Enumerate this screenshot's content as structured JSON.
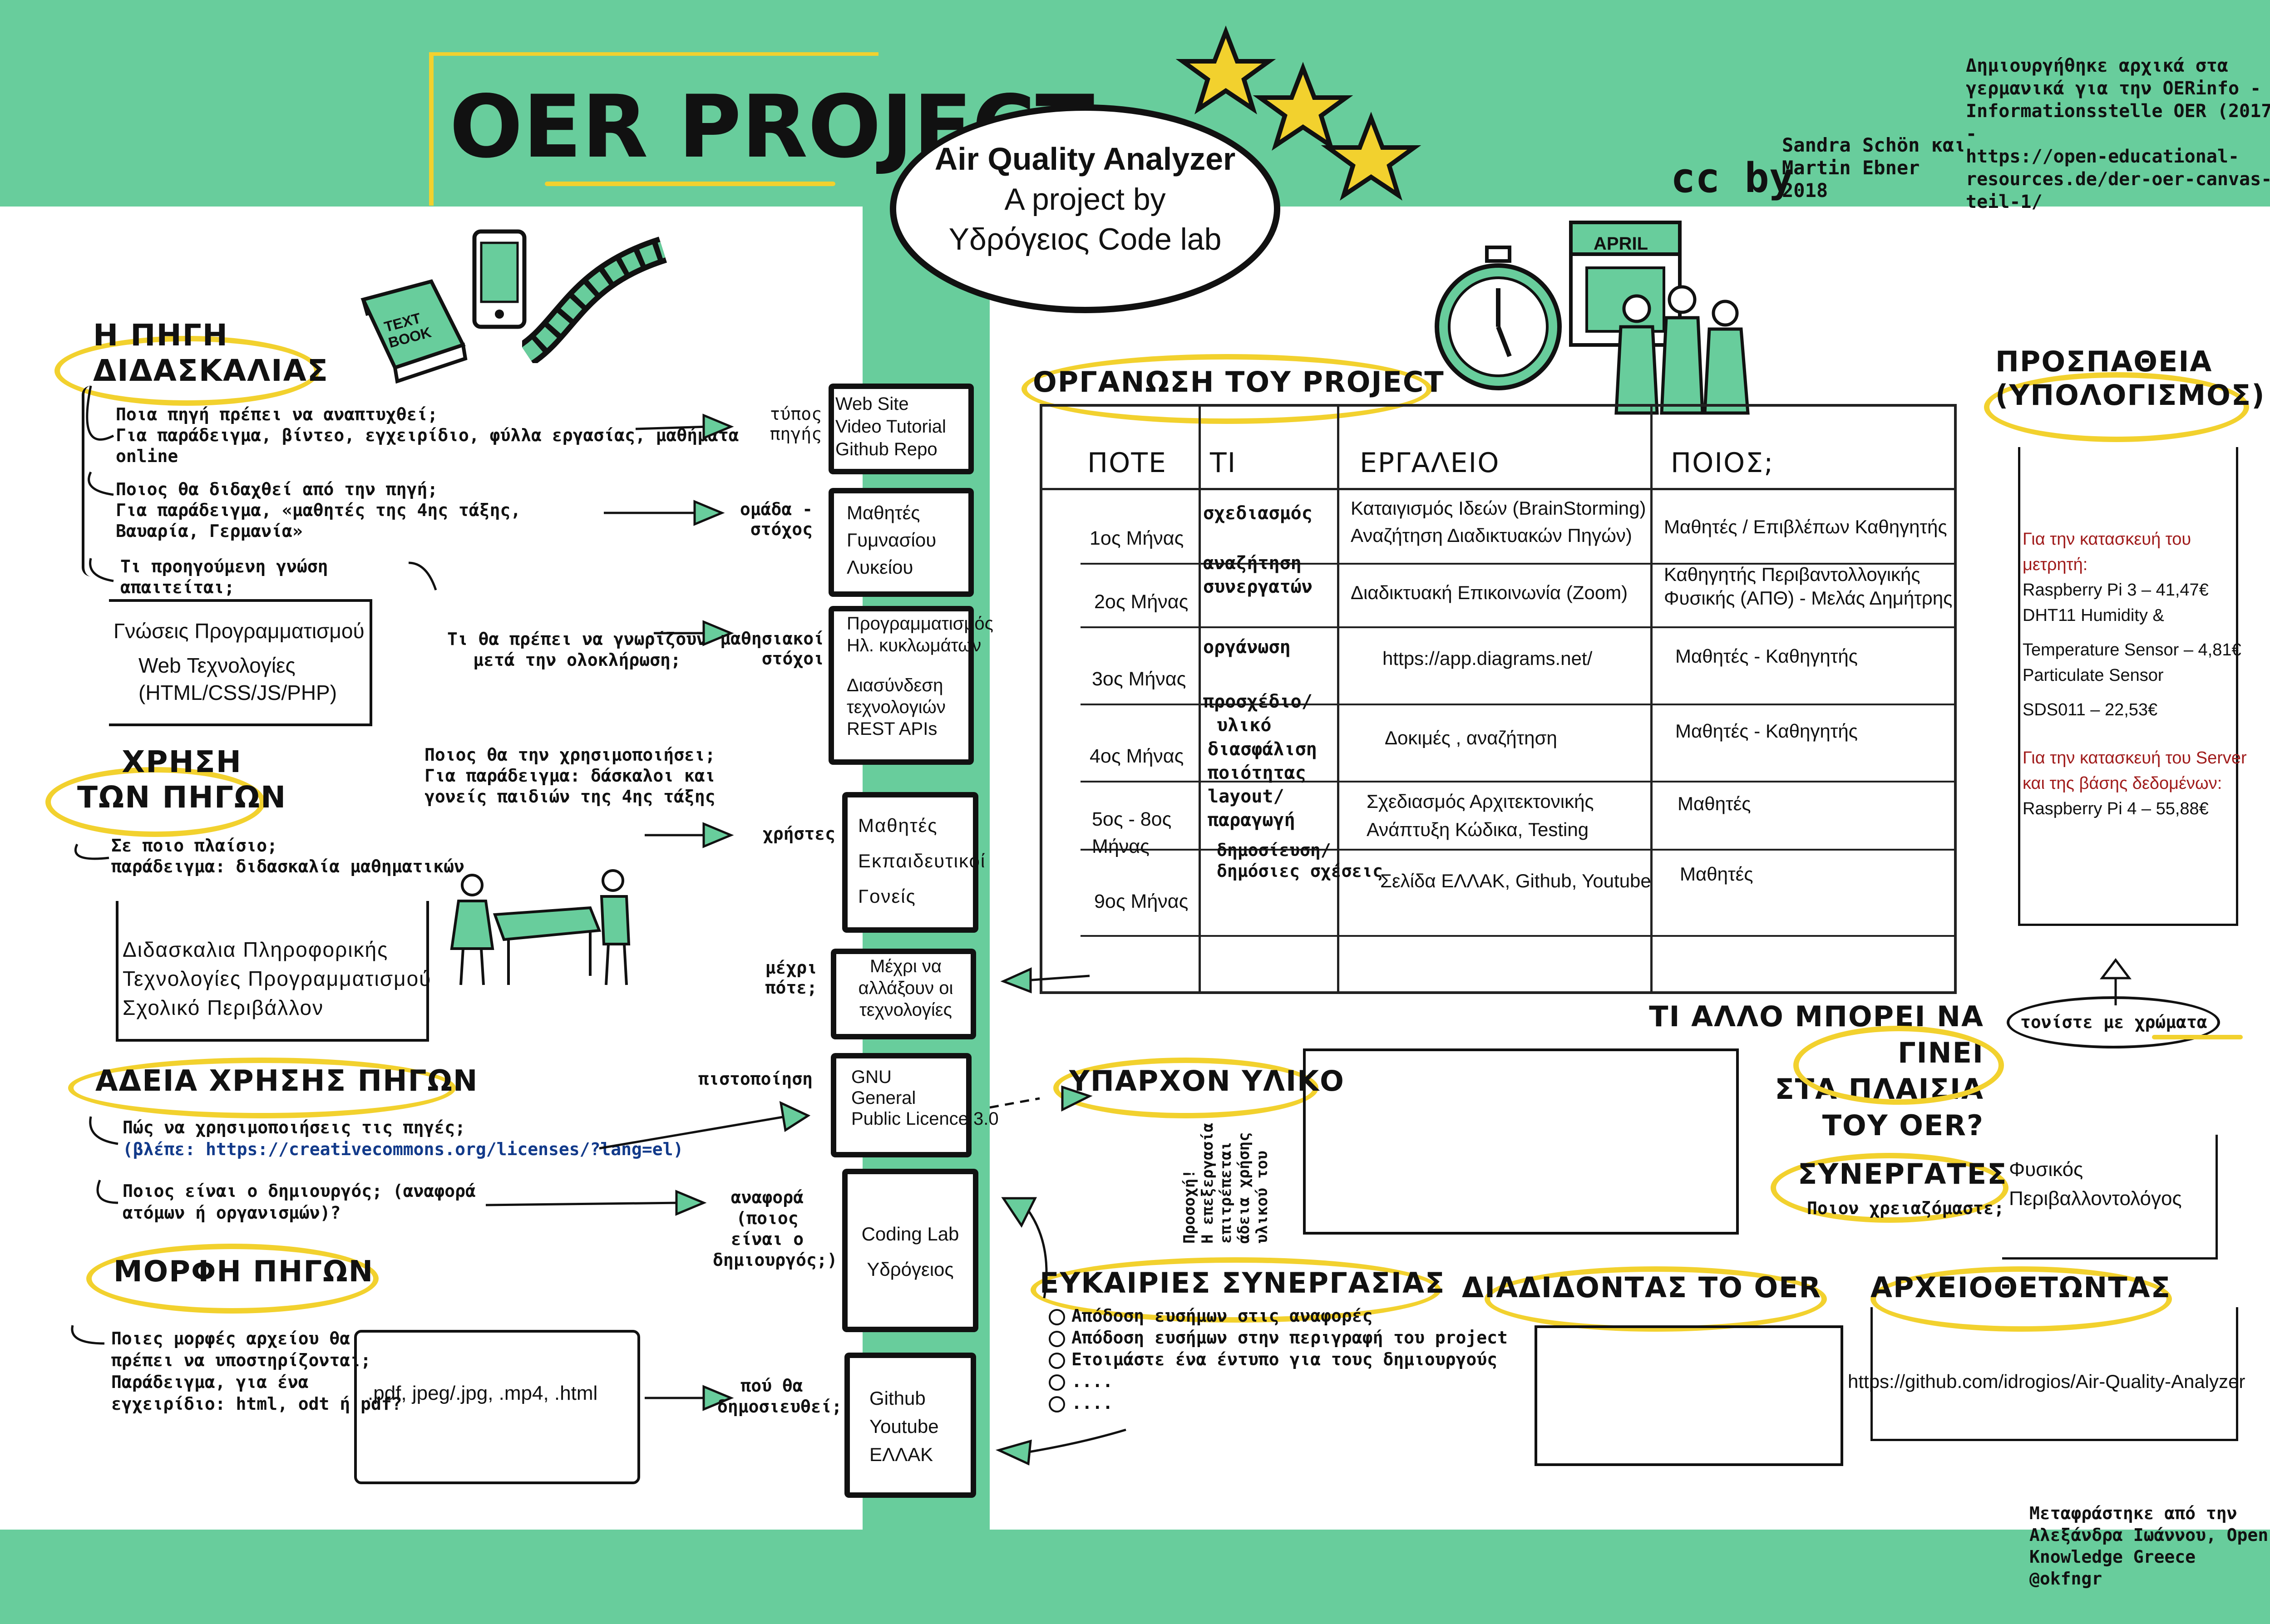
{
  "header": {
    "title": "OER PROJECT",
    "project_name": "Air Quality Analyzer",
    "project_by_line1": "A project by",
    "project_by_line2": "Υδρόγειος Code lab",
    "cc_logo": "cc by",
    "authors": [
      "Sandra Schön και",
      "Martin Ebner",
      "2018"
    ],
    "attribution": [
      "Δημιουργήθηκε αρχικά στα",
      "γερμανικά για την OERinfo -",
      "Informationsstelle OER (2017) -",
      "https://open-educational-",
      "resources.de/der-oer-canvas-teil-1/"
    ],
    "stars_icon": "stars-icon",
    "textbook_label": [
      "TEXT",
      "BOOK"
    ]
  },
  "left": {
    "source": {
      "heading": [
        "Η ΠΗΓΗ",
        "ΔΙΔΑΣΚΑΛΙΑΣ"
      ],
      "q1": [
        "Ποια πηγή πρέπει να αναπτυχθεί;",
        "Για παράδειγμα, βίντεο, εγχειρίδιο, φύλλα εργασίας, μαθήματα",
        "online"
      ],
      "q2": [
        "Ποιος θα διδαχθεί από την πηγή;",
        "Για παράδειγμα, «μαθητές της 4ης τάξης,",
        "Βαυαρία, Γερμανία»"
      ],
      "q3": [
        "Τι προηγούμενη γνώση",
        "απαιτείται;"
      ],
      "prior_knowledge": [
        "Γνώσεις Προγραμματισμού",
        "Web Τεχνολογίες",
        "(HTML/CSS/JS/PHP)"
      ],
      "q4": [
        "Τι θα πρέπει να γνωρίζουν",
        "μετά την ολοκλήρωση;"
      ]
    },
    "use": {
      "heading": [
        "ΧΡΗΣΗ",
        "ΤΩΝ ΠΗΓΩΝ"
      ],
      "q_users": [
        "Ποιος θα την χρησιμοποιήσει;",
        "Για παράδειγμα: δάσκαλοι και",
        "γονείς παιδιών της 4ης τάξης"
      ],
      "q_context": [
        "Σε ποιο πλαίσιο;",
        "παράδειγμα: διδασκαλία μαθηματικών"
      ],
      "context_box": [
        "Διδασκαλια Πληροφορικής",
        "Τεχνολογίες Προγραμματισμού",
        "Σχολικό Περιβάλλον"
      ]
    },
    "license": {
      "heading": "ΑΔΕΙΑ ΧΡΗΣΗΣ ΠΗΓΩΝ",
      "q1": [
        "Πώς να χρησιμοποιήσεις τις πηγές;",
        "(βλέπε: https://creativecommons.org/licenses/?lang=el)"
      ],
      "q2": [
        "Ποιος είναι ο δημιουργός; (αναφορά",
        "ατόμων ή οργανισμών)?"
      ]
    },
    "format": {
      "heading": "ΜΟΡΦΗ ΠΗΓΩΝ",
      "q1": [
        "Ποιες μορφές αρχείου θα",
        "πρέπει να υποστηρίζονται;",
        "Παράδειγμα, για ένα",
        "εγχειρίδιο: html, odt ή pdf?"
      ],
      "formats_box": ".pdf, jpeg/.jpg, .mp4, .html"
    }
  },
  "middle": {
    "items": [
      {
        "label": [
          "τύπος",
          "πηγής"
        ],
        "box": [
          "Web Site",
          "Video Tutorial",
          "Github Repo"
        ]
      },
      {
        "label": [
          "ομάδα -",
          "στόχος"
        ],
        "box": [
          "Μαθητές",
          "Γυμνασίου",
          "Λυκείου"
        ]
      },
      {
        "label": [
          "μαθησιακοί",
          "στόχοι"
        ],
        "box": [
          "Προγραμματισμός",
          "Ηλ. κυκλωμάτων",
          "Διασύνδεση",
          "τεχνολογιών",
          "REST APIs"
        ]
      },
      {
        "label": [
          "χρήστες"
        ],
        "box": [
          "Μαθητές",
          "Εκπαιδευτικοί",
          "Γονείς"
        ]
      },
      {
        "label": [
          "μέχρι",
          "πότε;"
        ],
        "box": [
          "Μέχρι να",
          "αλλάξουν οι",
          "τεχνολογίες"
        ]
      },
      {
        "label": [
          "πιστοποίηση"
        ],
        "box": [
          "GNU",
          "General",
          "Public Licence 3.0"
        ]
      },
      {
        "label": [
          "αναφορά",
          "(ποιος",
          "είναι ο",
          "δημιουργός;)"
        ],
        "box": [
          "Coding Lab",
          "Υδρόγειος"
        ]
      },
      {
        "label": [
          "πού θα",
          "δημοσιευθεί;"
        ],
        "box": [
          "Github",
          "Youtube",
          "ΕΛΛΑΚ"
        ]
      }
    ]
  },
  "right": {
    "organization": {
      "heading": "ΟΡΓΑΝΩΣΗ ΤΟΥ PROJECT",
      "calendar_label": "APRIL",
      "columns": [
        "ΠΟΤΕ",
        "ΤΙ",
        "ΕΡΓΑΛΕΙΟ",
        "ΠΟΙΟΣ;"
      ],
      "rows": [
        {
          "when": "1ος Μήνας",
          "what": "σχεδιασμός",
          "tool": [
            "Καταιγισμός Ιδεών (BrainStorming)",
            "Αναζήτηση Διαδικτυακών Πηγών)"
          ],
          "who": [
            "Μαθητές / Επιβλέπων Καθηγητής"
          ]
        },
        {
          "when": "2ος Μήνας",
          "what": [
            "αναζήτηση",
            "συνεργατών"
          ],
          "tool": [
            "Διαδικτυακή Επικοινωνία (Zoom)"
          ],
          "who": [
            "Καθηγητής Περιβαντολλογικής",
            "Φυσικής (ΑΠΘ) - Μελάς Δημήτρης"
          ]
        },
        {
          "when": "3ος Μήνας",
          "what": "οργάνωση",
          "tool": [
            "https://app.diagrams.net/"
          ],
          "who": [
            "Μαθητές - Καθηγητής"
          ]
        },
        {
          "when": "4ος Μήνας",
          "what": [
            "προσχέδιο/",
            "υλικό"
          ],
          "tool": [
            "Δοκιμές , αναζήτηση"
          ],
          "who": [
            "Μαθητές - Καθηγητής"
          ]
        },
        {
          "when": [
            "5ος - 8ος",
            "Μήνας"
          ],
          "what": [
            "διασφάλιση",
            "ποιότητας",
            "layout/",
            "παραγωγή"
          ],
          "tool": [
            "Σχεδιασμός Αρχιτεκτονικής",
            "Ανάπτυξη Κώδικα, Testing"
          ],
          "who": [
            "Μαθητές"
          ]
        },
        {
          "when": "9ος Μήνας",
          "what": [
            "δημοσίευση/",
            "δημόσιες σχέσεις"
          ],
          "tool": [
            "Σελίδα ΕΛΛΑΚ, Github, Youtube"
          ],
          "who": [
            "Μαθητές"
          ]
        }
      ]
    },
    "effort": {
      "heading": [
        "ΠΡΟΣΠΑΘΕΙΑ",
        "(ΥΠΟΛΟΓΙΣΜΟΣ)"
      ],
      "lines": [
        {
          "text": "Για την κατασκευή του",
          "accent": true
        },
        {
          "text": "μετρητή:",
          "accent": true
        },
        {
          "text": "Raspberry Pi 3 – 41,47€",
          "accent": false
        },
        {
          "text": "DHT11 Humidity &",
          "accent": false
        },
        {
          "text": "Temperature Sensor – 4,81€",
          "accent": false
        },
        {
          "text": "Particulate Sensor",
          "accent": false
        },
        {
          "text": "SDS011 – 22,53€",
          "accent": false
        },
        {
          "text": "Για την κατασκευή του Server",
          "accent": true
        },
        {
          "text": "και της βάσης δεδομένων:",
          "accent": true
        },
        {
          "text": "Raspberry Pi 4 – 55,88€",
          "accent": false
        }
      ],
      "color_hint": "τονίστε με χρώματα"
    },
    "what_else": [
      "ΤΙ ΑΛΛΟ ΜΠΟΡΕΙ ΝΑ ΓΙΝΕΙ",
      "ΣΤΑ ΠΛΑΙΣΙΑ",
      "ΤΟΥ OER?"
    ],
    "existing": {
      "heading": "ΥΠΑΡΧΟΝ ΥΛΙΚΟ",
      "vertical_note": [
        "Προσοχή!",
        "Η επεξεργασία",
        "επιτρέπεται",
        "άδεια χρήσης",
        "υλικού του"
      ]
    },
    "partners": {
      "heading": "ΣΥΝΕΡΓΑΤΕΣ",
      "sub": "Ποιον χρειαζόμαστε;",
      "value": [
        "Φυσικός",
        "Περιβαλλοντολόγος"
      ]
    },
    "opportunities": {
      "heading": "ΕΥΚΑΙΡΙΕΣ ΣΥΝΕΡΓΑΣΙΑΣ",
      "items": [
        "Απόδοση ευσήμων στις αναφορές",
        "Απόδοση ευσήμων στην περιγραφή του project",
        "Ετοιμάστε ένα έντυπο για τους δημιουργούς",
        "....",
        "...."
      ]
    },
    "spreading": {
      "heading": "ΔΙΑΔΙΔΟΝΤΑΣ ΤΟ OER"
    },
    "archiving": {
      "heading": "ΑΡΧΕΙΟΘΕΤΩΝΤΑΣ",
      "value": "https://github.com/idrogios/Air-Quality-Analyzer"
    },
    "translation": [
      "Μεταφράστηκε από την",
      "Αλεξάνδρα Ιωάννου, Open",
      "Knowledge Greece",
      "@okfngr"
    ]
  },
  "colors": {
    "green": "#68cd9c",
    "yellow": "#f2d12e",
    "accent_red": "#a01c1c",
    "ink": "#111111"
  }
}
